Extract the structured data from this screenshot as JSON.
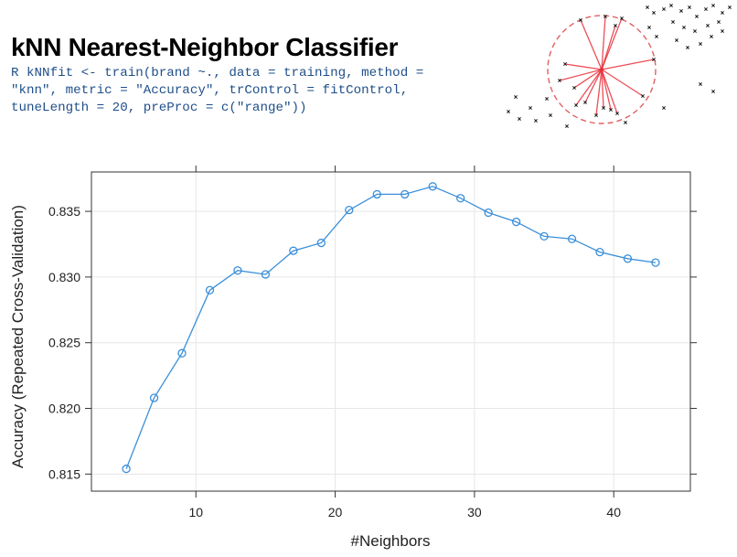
{
  "header": {
    "title": "kNN Nearest-Neighbor Classifier",
    "code_lines": [
      "R kNNfit <- train(brand ~., data = training, method =",
      "\"knn\", metric = \"Accuracy\", trControl = fitControl,",
      "tuneLength = 20, preProc = c(\"range\"))"
    ]
  },
  "illustration": {
    "icon": "knn-neighborhood-diagram-icon",
    "colors": {
      "circle": "#e06060",
      "lines": "#e8303a",
      "points": "#222222"
    }
  },
  "chart_data": {
    "type": "line",
    "xlabel": "#Neighbors",
    "ylabel": "Accuracy (Repeated Cross-Validation)",
    "xlim": [
      2.5,
      45.5
    ],
    "ylim": [
      0.8137,
      0.838
    ],
    "xticks": [
      10,
      20,
      30,
      40
    ],
    "yticks": [
      0.815,
      0.82,
      0.825,
      0.83,
      0.835
    ],
    "ytick_labels": [
      "0.815",
      "0.820",
      "0.825",
      "0.830",
      "0.835"
    ],
    "grid": true,
    "series": [
      {
        "color": "#3b8fd9",
        "marker": "open-circle",
        "x": [
          5,
          7,
          9,
          11,
          13,
          15,
          17,
          19,
          21,
          23,
          25,
          27,
          29,
          31,
          33,
          35,
          37,
          39,
          41,
          43
        ],
        "y": [
          0.8154,
          0.8208,
          0.8242,
          0.829,
          0.8305,
          0.8302,
          0.832,
          0.8326,
          0.8351,
          0.8363,
          0.8363,
          0.8369,
          0.836,
          0.8349,
          0.8342,
          0.8331,
          0.8329,
          0.8319,
          0.8314,
          0.8311
        ]
      }
    ]
  }
}
